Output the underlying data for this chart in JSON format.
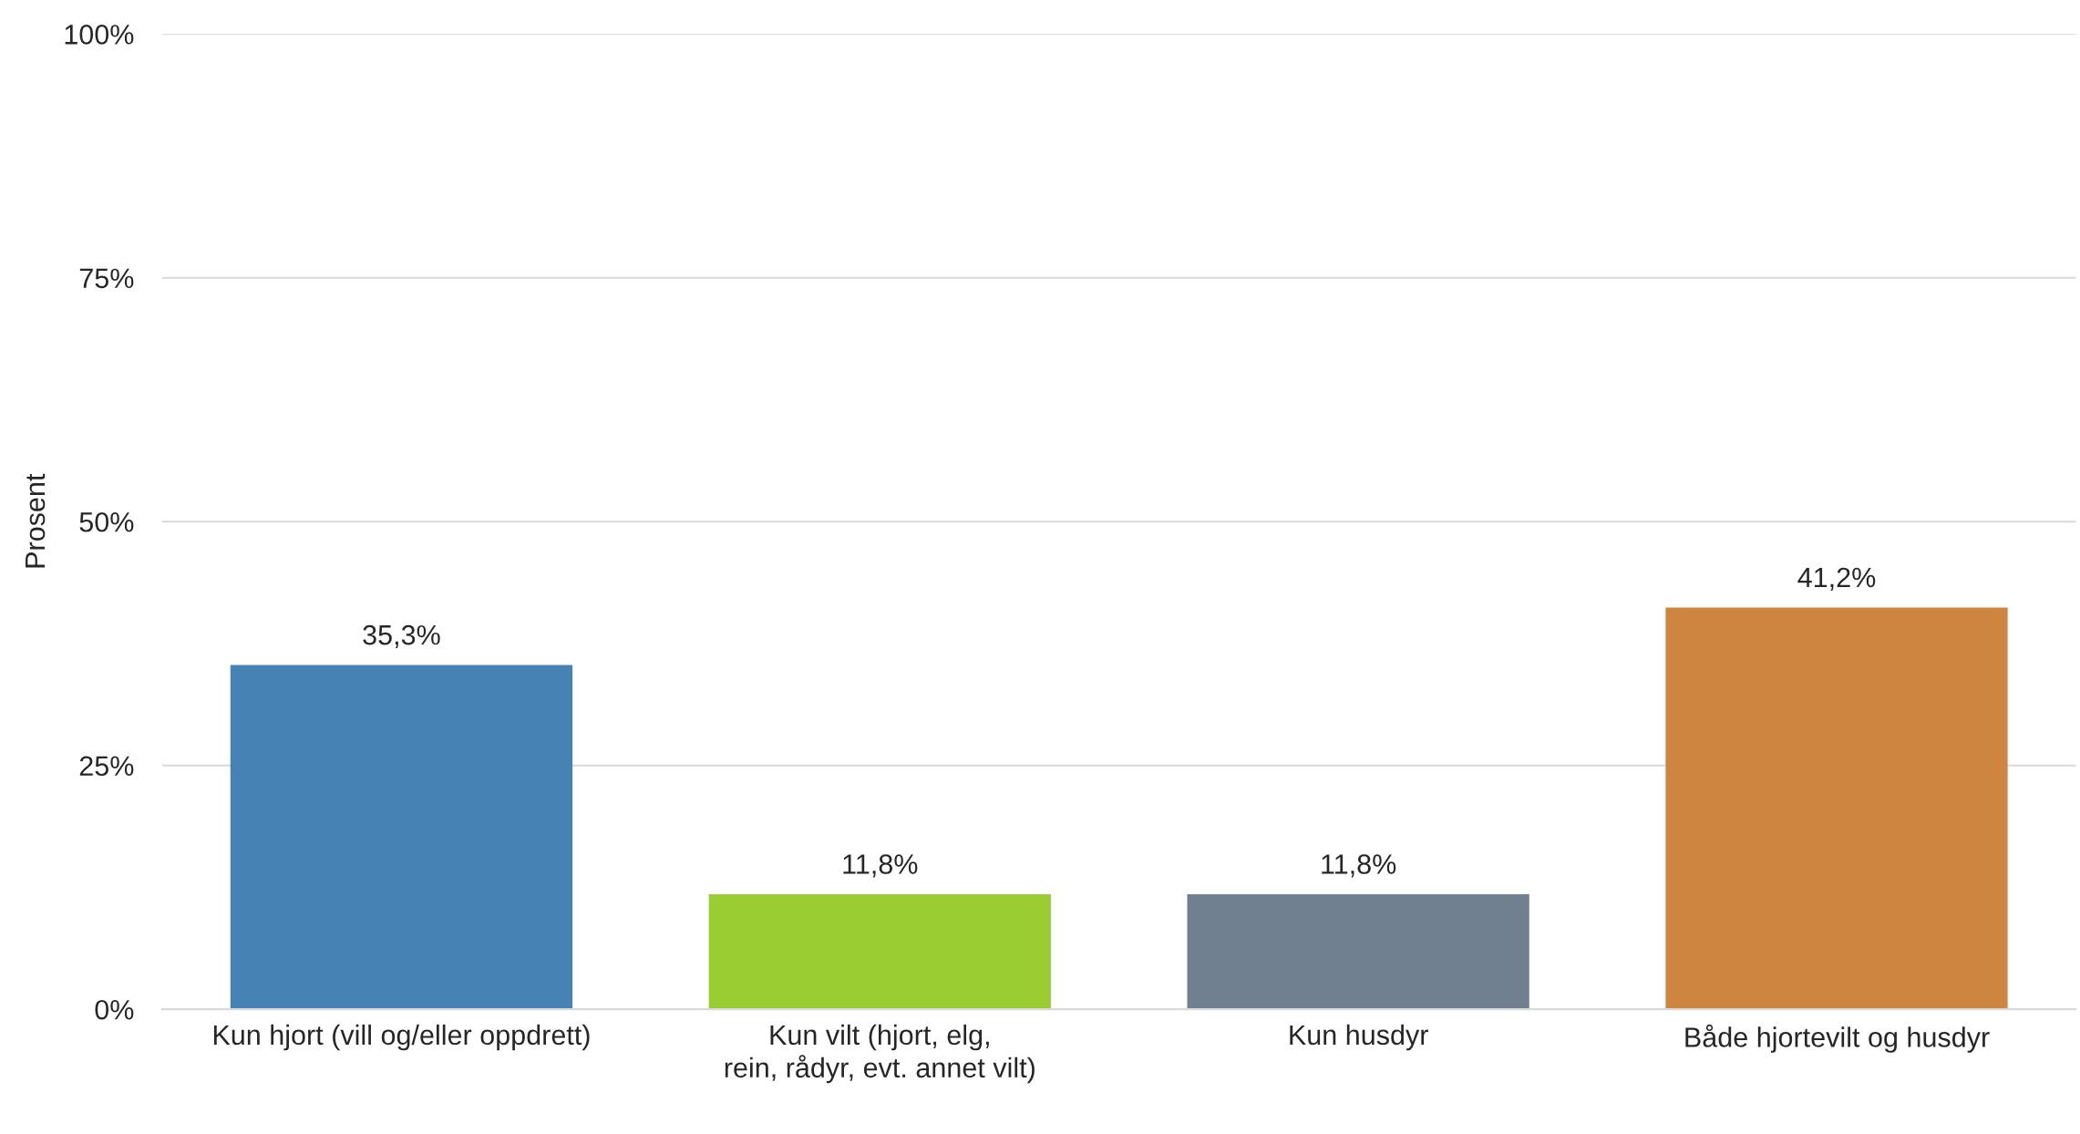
{
  "chart_data": {
    "type": "bar",
    "ylabel": "Prosent",
    "categories": [
      "Kun hjort (vill og/eller oppdrett)",
      "Kun vilt (hjort, elg,\nrein, rådyr, evt. annet vilt)",
      "Kun husdyr",
      "Både hjortevilt og husdyr"
    ],
    "values": [
      35.3,
      11.8,
      11.8,
      41.2
    ],
    "value_labels": [
      "35,3%",
      "11,8%",
      "11,8%",
      "41,2%"
    ],
    "colors": [
      "#4682b4",
      "#9acd32",
      "#708090",
      "#cd853f"
    ],
    "ylim": [
      0,
      100
    ],
    "yticks": [
      {
        "value": 0,
        "label": "0%"
      },
      {
        "value": 25,
        "label": "25%"
      },
      {
        "value": 50,
        "label": "50%"
      },
      {
        "value": 75,
        "label": "75%"
      },
      {
        "value": 100,
        "label": "100%"
      }
    ],
    "grid": "y",
    "legend": false
  }
}
